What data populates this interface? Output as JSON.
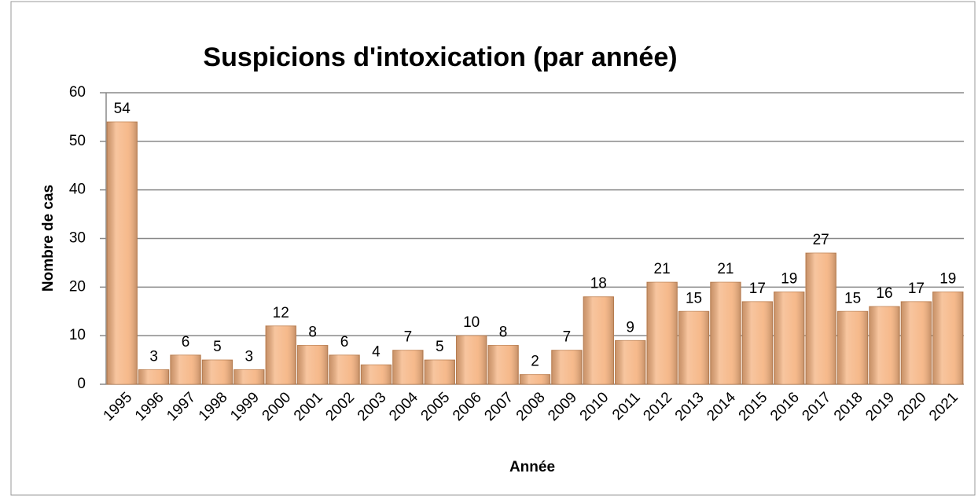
{
  "chart_data": {
    "type": "bar",
    "title": "Suspicions d'intoxication (par année)",
    "x_label": "Année",
    "y_label": "Nombre de cas",
    "categories": [
      "1995",
      "1996",
      "1997",
      "1998",
      "1999",
      "2000",
      "2001",
      "2002",
      "2003",
      "2004",
      "2005",
      "2006",
      "2007",
      "2008",
      "2009",
      "2010",
      "2011",
      "2012",
      "2013",
      "2014",
      "2015",
      "2016",
      "2017",
      "2018",
      "2019",
      "2020",
      "2021"
    ],
    "values": [
      54,
      3,
      6,
      5,
      3,
      12,
      8,
      6,
      4,
      7,
      5,
      10,
      8,
      2,
      7,
      18,
      9,
      21,
      15,
      21,
      17,
      19,
      27,
      15,
      16,
      17,
      19
    ],
    "color": "#f5b27f",
    "ylim": [
      0,
      60
    ],
    "yticks": [
      0,
      10,
      20,
      30,
      40,
      50,
      60
    ],
    "grid": true
  }
}
